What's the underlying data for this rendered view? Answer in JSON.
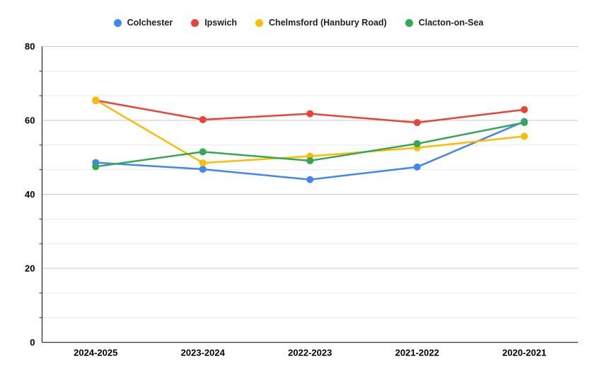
{
  "chart": {
    "background_color": "#ffffff",
    "axis_color": "#333333",
    "major_gridline_color": "#c8c8c8",
    "minor_gridline_color": "#e9e9e9",
    "axis_label_color": "#000000",
    "legend_text_color": "#1f1f1f"
  },
  "chart_data": {
    "type": "line",
    "title": "",
    "xlabel": "",
    "ylabel": "",
    "ylim": [
      0,
      80
    ],
    "y_major_ticks": [
      0,
      20,
      40,
      60,
      80
    ],
    "y_minor_ticks": [
      6.67,
      13.33,
      26.67,
      33.33,
      46.67,
      53.33,
      66.67,
      73.33
    ],
    "grid": true,
    "legend_position": "top",
    "point_radius": 5,
    "line_width": 2.5,
    "categories": [
      "2024-2025",
      "2023-2024",
      "2022-2023",
      "2021-2022",
      "2020-2021"
    ],
    "series": [
      {
        "name": "Colchester",
        "slug": "colchester",
        "color": "#4285F4",
        "values": [
          48.6,
          46.8,
          44.0,
          47.4,
          59.7
        ]
      },
      {
        "name": "Ipswich",
        "slug": "ipswich",
        "color": "#EA4335",
        "values": [
          65.4,
          60.2,
          61.8,
          59.4,
          62.9
        ]
      },
      {
        "name": "Chelmsford (Hanbury Road)",
        "slug": "chelmsford-hanbury-road",
        "color": "#FBBC04",
        "values": [
          65.5,
          48.5,
          50.3,
          52.6,
          55.7
        ]
      },
      {
        "name": "Clacton-on-Sea",
        "slug": "clacton-on-sea",
        "color": "#34A853",
        "values": [
          47.5,
          51.5,
          49.1,
          53.7,
          59.4
        ]
      }
    ]
  }
}
